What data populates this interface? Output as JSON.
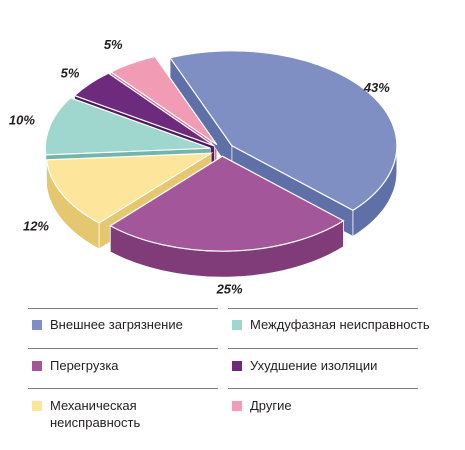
{
  "chart_data": {
    "type": "pie",
    "title": "",
    "style": "3d-exploded",
    "slices": [
      {
        "label": "Внешнее загрязнение",
        "value": 43,
        "display": "43%",
        "color": "#7f8fc3",
        "side_color": "#5f6fa8"
      },
      {
        "label": "Перегрузка",
        "value": 25,
        "display": "25%",
        "color": "#a4569a",
        "side_color": "#7f3c78"
      },
      {
        "label": "Механическая неисправность",
        "value": 12,
        "display": "12%",
        "color": "#fde59b",
        "side_color": "#e5c76f"
      },
      {
        "label": "Междуфазная неисправность",
        "value": 10,
        "display": "10%",
        "color": "#9fd6cd",
        "side_color": "#72b6ab"
      },
      {
        "label": "Ухудшение изоляции",
        "value": 5,
        "display": "5%",
        "color": "#6e2b7e",
        "side_color": "#4e1c5c"
      },
      {
        "label": "Другие",
        "value": 5,
        "display": "5%",
        "color": "#f19bb5",
        "side_color": "#d27592"
      }
    ]
  },
  "legend": {
    "left": [
      {
        "label": "Внешнее загрязнение",
        "color": "#7f8fc3"
      },
      {
        "label": "Перегрузка",
        "color": "#a4569a"
      },
      {
        "label": "Механическая неисправность",
        "color": "#fde59b"
      }
    ],
    "right": [
      {
        "label": "Междуфазная неисправность",
        "color": "#9fd6cd"
      },
      {
        "label": "Ухудшение изоляции",
        "color": "#6e2b7e"
      },
      {
        "label": "Другие",
        "color": "#f19bb5"
      }
    ]
  }
}
